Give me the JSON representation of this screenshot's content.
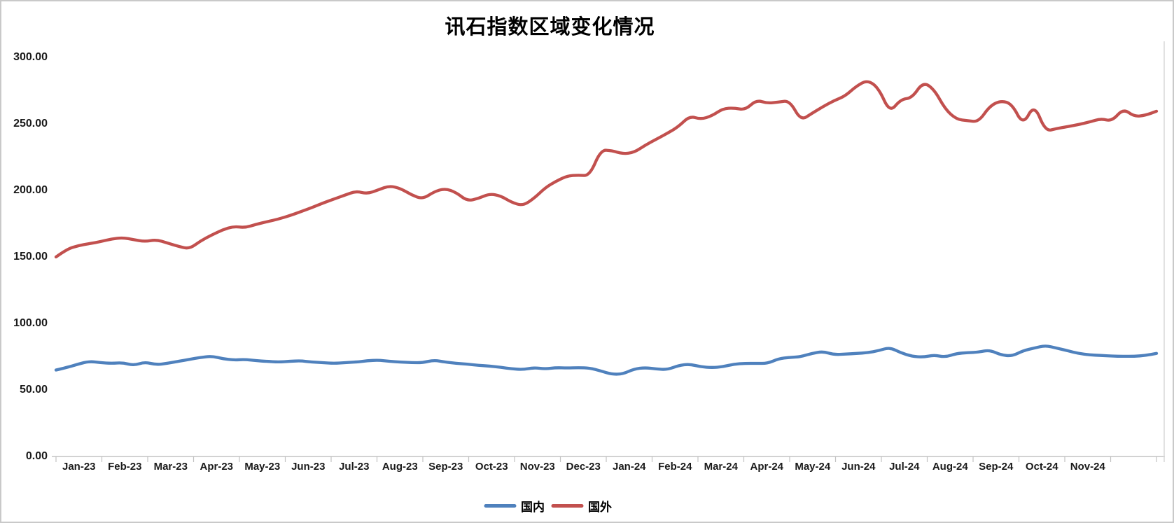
{
  "title": "讯石指数区域变化情况",
  "chart_data": {
    "type": "line",
    "title": "讯石指数区域变化情况",
    "grid": false,
    "smoothed_lines": true,
    "legend_position": "bottom",
    "x_axis": {
      "categories": [
        "Jan-23",
        "Feb-23",
        "Mar-23",
        "Apr-23",
        "May-23",
        "Jun-23",
        "Jul-23",
        "Aug-23",
        "Sep-23",
        "Oct-23",
        "Nov-23",
        "Dec-23",
        "Jan-24",
        "Feb-24",
        "Mar-24",
        "Apr-24",
        "May-24",
        "Jun-24",
        "Jul-24",
        "Aug-24",
        "Sep-24",
        "Oct-24",
        "Nov-24"
      ]
    },
    "y_axis": {
      "min": 0,
      "max": 300,
      "tick_step": 50,
      "tick_labels": [
        "300.00",
        "250.00",
        "200.00",
        "150.00",
        "100.00",
        "50.00",
        "0.00"
      ]
    },
    "series": [
      {
        "name": "国内",
        "color": "#4F81BD",
        "values": [
          65,
          67,
          69.5,
          71.5,
          70.5,
          70,
          70.5,
          68.5,
          71,
          69,
          70,
          71.5,
          73,
          74.5,
          75.5,
          73.5,
          72.5,
          73,
          72,
          71.5,
          71,
          71.5,
          72,
          71,
          70.5,
          70,
          70.5,
          71,
          72,
          72.5,
          71.5,
          71,
          70.5,
          70.5,
          72.5,
          71,
          70,
          69.5,
          68.5,
          68,
          67,
          66,
          65.3,
          66.8,
          65.8,
          66.8,
          66.5,
          66.8,
          66.5,
          64.3,
          61.8,
          62,
          65.8,
          66.8,
          65.8,
          65.3,
          68.4,
          69.5,
          67.4,
          66.8,
          67.5,
          69.5,
          70,
          70,
          70,
          73.5,
          74.5,
          75,
          77.5,
          79,
          76.5,
          77,
          77.5,
          78,
          79.5,
          82,
          78,
          75.3,
          74.7,
          76.3,
          74.7,
          77.5,
          78,
          78.5,
          80,
          76.3,
          75.5,
          79.5,
          81.5,
          83.5,
          81.5,
          79.5,
          77.5,
          76.3,
          76,
          75.5,
          75.3,
          75.3,
          76,
          77.5
        ]
      },
      {
        "name": "国外",
        "color": "#C2504E",
        "values": [
          150,
          156,
          158.5,
          160,
          161.5,
          163.5,
          164.5,
          163,
          161.5,
          163,
          160.5,
          158,
          156,
          162,
          166.5,
          170.5,
          173,
          172,
          174.5,
          176.5,
          178.5,
          181,
          184,
          187,
          190.5,
          193.5,
          196.5,
          199.5,
          197.5,
          200.5,
          203.5,
          201.5,
          196.5,
          193.5,
          199,
          201.5,
          198.5,
          192,
          194,
          197.5,
          196,
          191,
          188.5,
          194,
          202,
          207,
          211,
          211.5,
          211,
          230.5,
          230,
          227.5,
          228.5,
          234,
          238.5,
          243,
          248,
          256,
          253.5,
          256,
          261.5,
          262,
          260.5,
          268,
          265.5,
          266.5,
          267.5,
          252.5,
          258,
          263,
          267.5,
          271,
          278.5,
          283,
          277,
          258.5,
          268.5,
          269.5,
          281.5,
          276,
          261,
          253.5,
          252.5,
          251.5,
          263.5,
          267.5,
          265,
          249,
          265,
          244.5,
          246.5,
          248,
          249.5,
          251.5,
          254,
          252,
          261.5,
          255.5,
          256.5,
          259.5
        ]
      }
    ]
  },
  "colors": {
    "axis_line": "#c3c3c3",
    "plot_right_border": "#d9d9d9",
    "tick_label": "#1a1a1a",
    "frame_border": "#c9c9c9",
    "background": "#ffffff"
  }
}
